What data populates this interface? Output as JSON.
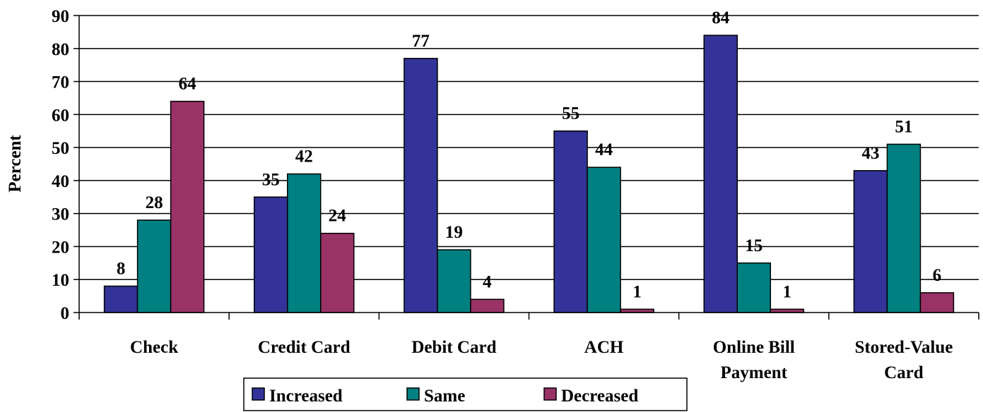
{
  "chart_data": {
    "type": "bar",
    "title": "",
    "xlabel": "",
    "ylabel": "Percent",
    "ylim": [
      0,
      90
    ],
    "yticks": [
      0,
      10,
      20,
      30,
      40,
      50,
      60,
      70,
      80,
      90
    ],
    "categories": [
      [
        "Check"
      ],
      [
        "Credit Card"
      ],
      [
        "Debit Card"
      ],
      [
        "ACH"
      ],
      [
        "Online Bill",
        "Payment"
      ],
      [
        "Stored-Value",
        "Card"
      ]
    ],
    "series": [
      {
        "name": "Increased",
        "color": "#333399",
        "values": [
          8,
          35,
          77,
          55,
          84,
          43
        ]
      },
      {
        "name": "Same",
        "color": "#008080",
        "values": [
          28,
          42,
          19,
          44,
          15,
          51
        ]
      },
      {
        "name": "Decreased",
        "color": "#993366",
        "values": [
          64,
          24,
          4,
          1,
          1,
          6
        ]
      }
    ],
    "grid": true,
    "legend_position": "bottom"
  }
}
